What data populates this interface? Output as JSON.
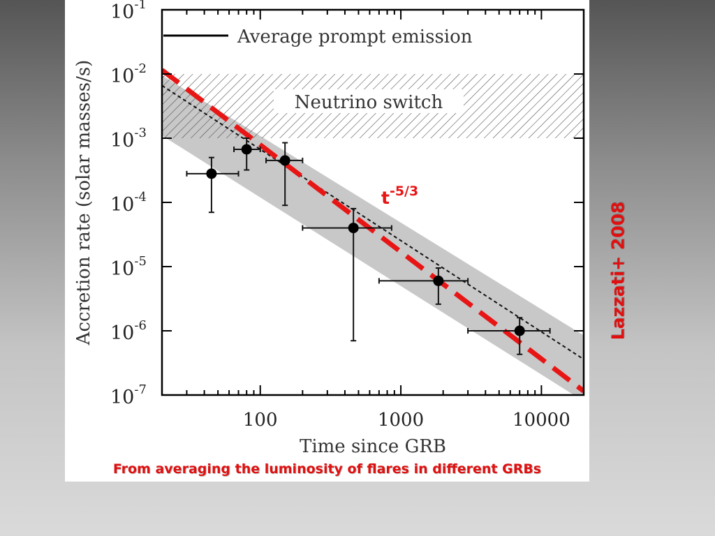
{
  "slide": {
    "caption": "From averaging the luminosity of flares in different GRBs",
    "citation": "Lazzati+ 2008",
    "accent_color": "#e01010"
  },
  "chart_data": {
    "type": "scatter",
    "x_scale": "log",
    "y_scale": "log",
    "xlabel": "Time since GRB",
    "ylabel": "Accretion rate (solar masses/s)",
    "xlim": [
      20,
      20000
    ],
    "ylim": [
      1e-07,
      0.1
    ],
    "x_tick_labels": [
      {
        "value": 100,
        "label": "100"
      },
      {
        "value": 1000,
        "label": "1000"
      },
      {
        "value": 10000,
        "label": "10000"
      }
    ],
    "y_tick_labels": [
      {
        "value": 0.1,
        "base": "10",
        "exp": "-1"
      },
      {
        "value": 0.01,
        "base": "10",
        "exp": "-2"
      },
      {
        "value": 0.001,
        "base": "10",
        "exp": "-3"
      },
      {
        "value": 0.0001,
        "base": "10",
        "exp": "-4"
      },
      {
        "value": 1e-05,
        "base": "10",
        "exp": "-5"
      },
      {
        "value": 1e-06,
        "base": "10",
        "exp": "-6"
      },
      {
        "value": 1e-07,
        "base": "10",
        "exp": "-7"
      }
    ],
    "legend": {
      "label": "Average prompt emission",
      "position": "top-left"
    },
    "shaded_region": {
      "label": "Neutrino switch",
      "y_range": [
        0.001,
        0.01
      ],
      "pattern": "hatched"
    },
    "points": [
      {
        "x": 45,
        "y": 0.00028,
        "x_err": [
          30,
          70
        ],
        "y_err": [
          7e-05,
          0.0005
        ]
      },
      {
        "x": 80,
        "y": 0.00067,
        "x_err": [
          65,
          100
        ],
        "y_err": [
          0.00032,
          0.001
        ]
      },
      {
        "x": 150,
        "y": 0.00045,
        "x_err": [
          110,
          200
        ],
        "y_err": [
          9e-05,
          0.00085
        ]
      },
      {
        "x": 460,
        "y": 4e-05,
        "x_err": [
          200,
          860
        ],
        "y_err": [
          7e-07,
          8e-05
        ]
      },
      {
        "x": 1850,
        "y": 6e-06,
        "x_err": [
          700,
          3000
        ],
        "y_err": [
          2.6e-06,
          9.5e-06
        ]
      },
      {
        "x": 7000,
        "y": 1e-06,
        "x_err": [
          3000,
          11500
        ],
        "y_err": [
          4.3e-07,
          1.6e-06
        ]
      }
    ],
    "fit_line": {
      "style": "dotted",
      "from": [
        20,
        0.0066
      ],
      "to": [
        20000,
        3.6e-07
      ]
    },
    "confidence_band": {
      "upper_from": [
        20,
        0.0095
      ],
      "upper_to": [
        20000,
        8.5e-07
      ],
      "lower_from": [
        20,
        0.0011
      ],
      "lower_to": [
        20000,
        8e-08
      ]
    },
    "power_law": {
      "label_base": "t",
      "label_exp": "-5/3",
      "from": [
        20,
        0.0115
      ],
      "to": [
        20000,
        1.15e-07
      ],
      "color": "#e81515"
    }
  }
}
